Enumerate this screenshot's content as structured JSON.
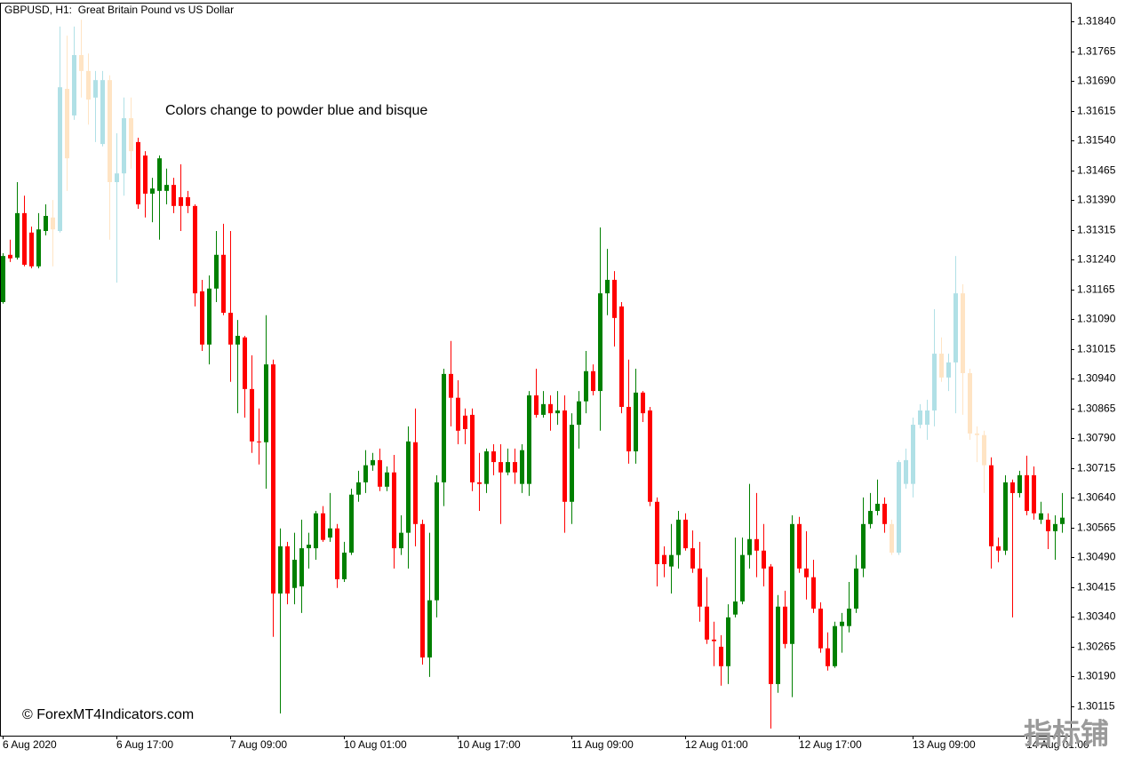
{
  "chart_data": {
    "type": "candlestick",
    "title": "GBPUSD, H1:  Great Britain Pound vs US Dollar",
    "annotation": "Colors change to powder blue and bisque",
    "credit": "© ForexMT4Indicators.com",
    "watermark": "指标铺",
    "categories": [
      "6 Aug 2020",
      null,
      null,
      null,
      null,
      null,
      null,
      null,
      null,
      null,
      null,
      null,
      null,
      null,
      null,
      null,
      "6 Aug 17:00",
      null,
      null,
      null,
      null,
      null,
      null,
      null,
      null,
      null,
      null,
      null,
      null,
      null,
      null,
      null,
      "7 Aug 09:00",
      null,
      null,
      null,
      null,
      null,
      null,
      null,
      null,
      null,
      null,
      null,
      null,
      null,
      null,
      null,
      "10 Aug 01:00",
      null,
      null,
      null,
      null,
      null,
      null,
      null,
      null,
      null,
      null,
      null,
      null,
      null,
      null,
      null,
      "10 Aug 17:00",
      null,
      null,
      null,
      null,
      null,
      null,
      null,
      null,
      null,
      null,
      null,
      null,
      null,
      null,
      null,
      "11 Aug 09:00",
      null,
      null,
      null,
      null,
      null,
      null,
      null,
      null,
      null,
      null,
      null,
      null,
      null,
      null,
      null,
      "12 Aug 01:00",
      null,
      null,
      null,
      null,
      null,
      null,
      null,
      null,
      null,
      null,
      null,
      null,
      null,
      null,
      null,
      "12 Aug 17:00",
      null,
      null,
      null,
      null,
      null,
      null,
      null,
      null,
      null,
      null,
      null,
      null,
      null,
      null,
      null,
      "13 Aug 09:00",
      null,
      null,
      null,
      null,
      null,
      null,
      null,
      null,
      null,
      null,
      null,
      null,
      null,
      null,
      null,
      "14 Aug 01:00",
      null,
      null,
      null,
      null,
      null
    ],
    "open": [
      1.31133,
      1.31252,
      1.31245,
      1.31357,
      1.31308,
      1.31223,
      1.31312,
      1.31346,
      1.31312,
      1.3167,
      1.31603,
      1.31755,
      1.31715,
      1.31648,
      1.31531,
      1.31692,
      1.31435,
      1.31457,
      1.31596,
      1.31536,
      1.31502,
      1.31406,
      1.31413,
      1.31413,
      1.31428,
      1.31397,
      1.31397,
      1.31375,
      1.3116,
      1.31026,
      1.31167,
      1.31252,
      1.31106,
      1.31026,
      1.31044,
      1.30914,
      1.30782,
      1.3078,
      1.30976,
      1.30399,
      1.30518,
      1.30413,
      1.30417,
      1.30513,
      1.30513,
      1.30601,
      1.3054,
      1.30563,
      1.30435,
      1.30502,
      1.30648,
      1.30679,
      1.30722,
      1.30735,
      1.30668,
      1.30704,
      1.30513,
      1.30552,
      1.3078,
      1.30574,
      1.30238,
      1.30382,
      1.30679,
      1.30952,
      1.30892,
      1.30847,
      1.30849,
      1.30679,
      1.30675,
      1.30757,
      1.3073,
      1.30704,
      1.3073,
      1.30675,
      1.30675,
      1.30898,
      1.30849,
      1.30876,
      1.30853,
      1.3086,
      1.3063,
      1.30824,
      1.30883,
      1.30959,
      1.30909,
      1.31155,
      1.31189,
      1.31122,
      1.30869,
      1.30757,
      1.30905,
      1.3086,
      1.3063,
      1.30496,
      1.30467,
      1.30496,
      1.30585,
      1.30513,
      1.30462,
      1.30366,
      1.30283,
      1.30265,
      1.30216,
      1.30346,
      1.30379,
      1.30496,
      1.30536,
      1.30507,
      1.30467,
      1.30171,
      1.30366,
      1.30272,
      1.30574,
      1.30462,
      1.3044,
      1.30361,
      1.30261,
      1.30216,
      1.30317,
      1.30317,
      1.30361,
      1.30462,
      1.30574,
      1.30607,
      1.30625,
      1.30574,
      1.30502,
      1.30675,
      1.30675,
      1.30824,
      1.30824,
      1.3086,
      1.31003,
      1.30943,
      1.30981,
      1.31155,
      1.30954,
      1.30802,
      1.30798,
      1.30722,
      1.30518,
      1.30507,
      1.30679,
      1.30652,
      1.30697,
      1.30697,
      1.30585,
      1.30585,
      1.30556,
      1.30574
    ],
    "high": [
      1.31256,
      1.3129,
      1.31435,
      1.31401,
      1.31323,
      1.31357,
      1.31379,
      1.3139,
      1.31827,
      1.31804,
      1.31827,
      1.31844,
      1.31759,
      1.31715,
      1.31715,
      1.31704,
      1.31558,
      1.31648,
      1.31648,
      1.31547,
      1.31513,
      1.31446,
      1.31502,
      1.31469,
      1.31446,
      1.3148,
      1.31413,
      1.31379,
      1.31189,
      1.312,
      1.31312,
      1.3133,
      1.31312,
      1.31088,
      1.31048,
      1.30999,
      1.30865,
      1.311,
      1.30988,
      1.30563,
      1.30529,
      1.30552,
      1.30585,
      1.30552,
      1.30607,
      1.30619,
      1.30652,
      1.30574,
      1.30529,
      1.30663,
      1.30708,
      1.3076,
      1.30753,
      1.30764,
      1.30719,
      1.30748,
      1.30596,
      1.3082,
      1.30865,
      1.30585,
      1.30552,
      1.30697,
      1.30965,
      1.31035,
      1.30936,
      1.30865,
      1.30865,
      1.30753,
      1.30764,
      1.30775,
      1.30775,
      1.30764,
      1.30764,
      1.30775,
      1.30909,
      1.30965,
      1.30909,
      1.30898,
      1.30909,
      1.30898,
      1.30853,
      1.30909,
      1.3101,
      1.30976,
      1.31321,
      1.31267,
      1.31211,
      1.31133,
      1.30988,
      1.30965,
      1.30909,
      1.30869,
      1.30641,
      1.30518,
      1.30574,
      1.30607,
      1.30601,
      1.30558,
      1.30529,
      1.3044,
      1.30328,
      1.30294,
      1.30372,
      1.3054,
      1.3054,
      1.30675,
      1.30652,
      1.30574,
      1.30473,
      1.30395,
      1.30406,
      1.30596,
      1.30592,
      1.30556,
      1.30484,
      1.30377,
      1.30301,
      1.30328,
      1.3035,
      1.30428,
      1.30496,
      1.30641,
      1.30652,
      1.30686,
      1.30641,
      1.30585,
      1.30735,
      1.30764,
      1.30842,
      1.30876,
      1.30887,
      1.31115,
      1.31044,
      1.31003,
      1.31249,
      1.31178,
      1.30965,
      1.3082,
      1.30809,
      1.30742,
      1.3054,
      1.30697,
      1.30686,
      1.30708,
      1.30746,
      1.30719,
      1.3063,
      1.30601,
      1.30596,
      1.30652
    ],
    "low": [
      1.31129,
      1.31234,
      1.3124,
      1.31223,
      1.31218,
      1.31218,
      1.31301,
      1.31223,
      1.31308,
      1.31413,
      1.31592,
      1.31648,
      1.3158,
      1.31536,
      1.31525,
      1.3129,
      1.31182,
      1.31401,
      1.31469,
      1.31368,
      1.31346,
      1.31334,
      1.3129,
      1.31379,
      1.31357,
      1.31312,
      1.31357,
      1.31122,
      1.3101,
      1.30976,
      1.31133,
      1.311,
      1.30932,
      1.30853,
      1.30842,
      1.30753,
      1.30724,
      1.30663,
      1.3029,
      1.30097,
      1.30372,
      1.30372,
      1.3035,
      1.30462,
      1.30484,
      1.30529,
      1.30529,
      1.30413,
      1.30428,
      1.30496,
      1.3063,
      1.30652,
      1.30708,
      1.30657,
      1.30657,
      1.30462,
      1.30496,
      1.30462,
      1.30518,
      1.3022,
      1.30189,
      1.30339,
      1.30619,
      1.3082,
      1.30775,
      1.30775,
      1.30657,
      1.30607,
      1.30652,
      1.30697,
      1.30574,
      1.30697,
      1.30675,
      1.30652,
      1.30645,
      1.30842,
      1.30842,
      1.30809,
      1.30824,
      1.30552,
      1.30574,
      1.30764,
      1.30853,
      1.30898,
      1.30809,
      1.311,
      1.31021,
      1.30853,
      1.30726,
      1.30726,
      1.30831,
      1.30619,
      1.30417,
      1.3044,
      1.30399,
      1.30462,
      1.30507,
      1.30451,
      1.30328,
      1.30272,
      1.30216,
      1.30167,
      1.30171,
      1.30339,
      1.30372,
      1.30462,
      1.3044,
      1.30417,
      1.30059,
      1.30149,
      1.30261,
      1.30138,
      1.30451,
      1.30384,
      1.3035,
      1.3025,
      1.30205,
      1.30212,
      1.3025,
      1.30301,
      1.3035,
      1.3044,
      1.30563,
      1.30596,
      1.30552,
      1.30496,
      1.30496,
      1.30663,
      1.30641,
      1.30815,
      1.30786,
      1.3082,
      1.30932,
      1.30909,
      1.30853,
      1.30849,
      1.30786,
      1.3073,
      1.30652,
      1.30462,
      1.30478,
      1.30496,
      1.30339,
      1.30641,
      1.30596,
      1.30585,
      1.30574,
      1.30511,
      1.30484,
      1.30552
    ],
    "close": [
      1.31249,
      1.31243,
      1.31357,
      1.31227,
      1.31223,
      1.31316,
      1.3135,
      1.31316,
      1.31674,
      1.31495,
      1.31755,
      1.31715,
      1.31643,
      1.31692,
      1.31692,
      1.31435,
      1.31457,
      1.31596,
      1.31513,
      1.31379,
      1.31406,
      1.31419,
      1.31495,
      1.31428,
      1.31375,
      1.31375,
      1.31375,
      1.31155,
      1.31026,
      1.31167,
      1.31252,
      1.31106,
      1.31026,
      1.31048,
      1.30914,
      1.30782,
      1.3078,
      1.30976,
      1.30399,
      1.30518,
      1.30399,
      1.30484,
      1.30513,
      1.30522,
      1.30601,
      1.30534,
      1.30563,
      1.30435,
      1.30502,
      1.30648,
      1.30679,
      1.30722,
      1.30735,
      1.30668,
      1.30704,
      1.30513,
      1.30552,
      1.30782,
      1.30574,
      1.30238,
      1.30382,
      1.30679,
      1.30952,
      1.30892,
      1.30809,
      1.30813,
      1.30679,
      1.30675,
      1.30757,
      1.3073,
      1.30704,
      1.3073,
      1.30704,
      1.3076,
      1.30898,
      1.30849,
      1.30876,
      1.30853,
      1.3086,
      1.3063,
      1.30824,
      1.30883,
      1.30959,
      1.30909,
      1.31155,
      1.31189,
      1.31093,
      1.30869,
      1.30757,
      1.30905,
      1.30853,
      1.3063,
      1.30473,
      1.30473,
      1.30496,
      1.30585,
      1.30513,
      1.30462,
      1.30366,
      1.30283,
      1.30279,
      1.30216,
      1.30339,
      1.30379,
      1.30496,
      1.30536,
      1.30507,
      1.30462,
      1.30171,
      1.30366,
      1.30272,
      1.30574,
      1.30462,
      1.3044,
      1.30361,
      1.30261,
      1.30216,
      1.30317,
      1.30328,
      1.30361,
      1.30462,
      1.30574,
      1.30607,
      1.30625,
      1.30574,
      1.30502,
      1.3073,
      1.30735,
      1.30824,
      1.3086,
      1.3086,
      1.31003,
      1.30943,
      1.30981,
      1.31155,
      1.30954,
      1.30802,
      1.30798,
      1.30722,
      1.30518,
      1.30507,
      1.30679,
      1.30652,
      1.30697,
      1.30607,
      1.30601,
      1.30601,
      1.30556,
      1.30574,
      1.3059
    ],
    "colors": [
      "green",
      "red",
      "green",
      "red",
      "red",
      "green",
      "green",
      "bisque",
      "powderblue",
      "bisque",
      "powderblue",
      "bisque",
      "bisque",
      "powderblue",
      "powderblue",
      "bisque",
      "powderblue",
      "powderblue",
      "bisque",
      "red",
      "red",
      "green",
      "green",
      "green",
      "red",
      "red",
      "red",
      "red",
      "red",
      "green",
      "green",
      "red",
      "red",
      "green",
      "red",
      "red",
      "red",
      "green",
      "red",
      "green",
      "red",
      "green",
      "green",
      "green",
      "green",
      "red",
      "green",
      "red",
      "green",
      "green",
      "green",
      "green",
      "green",
      "red",
      "green",
      "red",
      "green",
      "green",
      "red",
      "red",
      "green",
      "green",
      "green",
      "red",
      "red",
      "red",
      "red",
      "red",
      "green",
      "red",
      "red",
      "green",
      "red",
      "green",
      "green",
      "red",
      "green",
      "red",
      "green",
      "red",
      "green",
      "green",
      "green",
      "red",
      "green",
      "green",
      "red",
      "red",
      "red",
      "green",
      "red",
      "red",
      "red",
      "red",
      "green",
      "green",
      "red",
      "red",
      "red",
      "red",
      "red",
      "red",
      "green",
      "green",
      "green",
      "green",
      "red",
      "red",
      "red",
      "green",
      "red",
      "green",
      "red",
      "red",
      "red",
      "red",
      "red",
      "green",
      "green",
      "green",
      "green",
      "green",
      "green",
      "green",
      "red",
      "bisque",
      "powderblue",
      "powderblue",
      "powderblue",
      "powderblue",
      "powderblue",
      "powderblue",
      "bisque",
      "powderblue",
      "powderblue",
      "bisque",
      "bisque",
      "bisque",
      "bisque",
      "red",
      "red",
      "green",
      "red",
      "green",
      "red",
      "red",
      "green",
      "red",
      "green",
      "green"
    ],
    "ylim": [
      1.30041,
      1.31887
    ],
    "yticks": [
      {
        "value": 1.3184,
        "label": "1.31840"
      },
      1.31765,
      {
        "value": 1.3169,
        "label": "1.31690"
      },
      1.31615,
      {
        "value": 1.3154,
        "label": "1.31540"
      },
      1.31465,
      {
        "value": 1.3139,
        "label": "1.31390"
      },
      1.31315,
      {
        "value": 1.3124,
        "label": "1.31240"
      },
      1.31165,
      {
        "value": 1.3109,
        "label": "1.31090"
      },
      1.31015,
      {
        "value": 1.3094,
        "label": "1.30940"
      },
      1.30865,
      {
        "value": 1.3079,
        "label": "1.30790"
      },
      1.30715,
      {
        "value": 1.3064,
        "label": "1.30640"
      },
      1.30565,
      {
        "value": 1.3049,
        "label": "1.30490"
      },
      1.30415,
      {
        "value": 1.3034,
        "label": "1.30340"
      },
      1.30265,
      {
        "value": 1.3019,
        "label": "1.30190"
      },
      1.30115
    ]
  }
}
